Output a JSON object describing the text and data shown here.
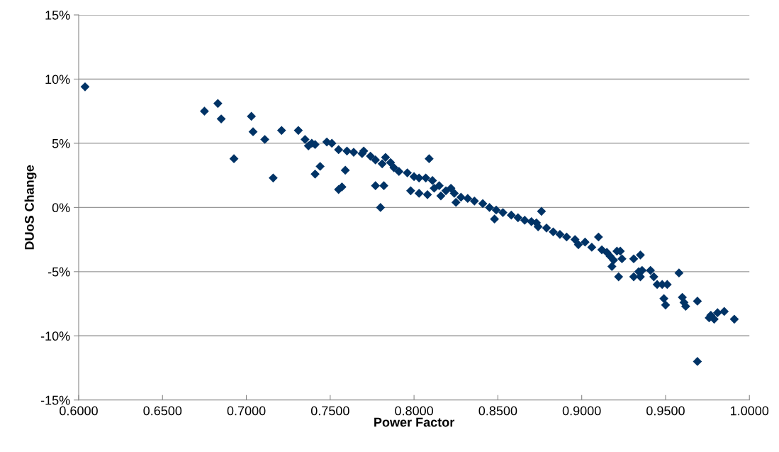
{
  "chart_data": {
    "type": "scatter",
    "xlabel": "Power Factor",
    "ylabel": "DUoS Change",
    "x": [
      0.6038,
      0.675,
      0.683,
      0.685,
      0.6926,
      0.703,
      0.704,
      0.711,
      0.716,
      0.721,
      0.731,
      0.735,
      0.737,
      0.739,
      0.741,
      0.741,
      0.744,
      0.748,
      0.751,
      0.755,
      0.755,
      0.757,
      0.759,
      0.76,
      0.764,
      0.769,
      0.77,
      0.774,
      0.777,
      0.777,
      0.78,
      0.782,
      0.781,
      0.783,
      0.786,
      0.788,
      0.791,
      0.796,
      0.8,
      0.798,
      0.803,
      0.803,
      0.807,
      0.809,
      0.808,
      0.811,
      0.812,
      0.815,
      0.816,
      0.819,
      0.822,
      0.825,
      0.824,
      0.828,
      0.832,
      0.836,
      0.841,
      0.845,
      0.848,
      0.849,
      0.853,
      0.858,
      0.862,
      0.866,
      0.87,
      0.873,
      0.876,
      0.874,
      0.879,
      0.883,
      0.887,
      0.891,
      0.896,
      0.898,
      0.902,
      0.906,
      0.91,
      0.912,
      0.915,
      0.917,
      0.919,
      0.921,
      0.918,
      0.923,
      0.924,
      0.922,
      0.931,
      0.935,
      0.931,
      0.934,
      0.935,
      0.936,
      0.941,
      0.943,
      0.945,
      0.948,
      0.949,
      0.95,
      0.951,
      0.958,
      0.96,
      0.961,
      0.962,
      0.969,
      0.977,
      0.979,
      0.981,
      0.985,
      0.991,
      0.969,
      0.976
    ],
    "values": [
      9.4,
      7.5,
      8.1,
      6.9,
      3.8,
      7.1,
      5.9,
      5.3,
      2.3,
      6.0,
      6.0,
      5.3,
      4.8,
      5.0,
      4.9,
      2.6,
      3.2,
      5.1,
      5.0,
      4.5,
      1.4,
      1.6,
      2.9,
      4.4,
      4.3,
      4.2,
      4.4,
      4.0,
      1.7,
      3.7,
      0.0,
      1.7,
      3.4,
      3.9,
      3.5,
      3.1,
      2.8,
      2.7,
      2.4,
      1.3,
      1.1,
      2.3,
      2.3,
      3.8,
      1.0,
      2.1,
      1.5,
      1.7,
      0.9,
      1.3,
      1.5,
      0.4,
      1.1,
      0.8,
      0.7,
      0.5,
      0.3,
      0.0,
      -0.9,
      -0.2,
      -0.4,
      -0.6,
      -0.8,
      -1.0,
      -1.1,
      -1.2,
      -0.3,
      -1.5,
      -1.6,
      -1.9,
      -2.1,
      -2.3,
      -2.5,
      -2.9,
      -2.7,
      -3.1,
      -2.3,
      -3.3,
      -3.5,
      -3.8,
      -4.1,
      -3.4,
      -4.6,
      -3.4,
      -4.0,
      -5.4,
      -4.0,
      -3.7,
      -5.4,
      -5.0,
      -5.4,
      -4.9,
      -4.9,
      -5.4,
      -6.0,
      -6.0,
      -7.1,
      -7.6,
      -6.0,
      -5.1,
      -7.0,
      -7.4,
      -7.7,
      -7.3,
      -8.4,
      -8.7,
      -8.2,
      -8.1,
      -8.7,
      -12.0,
      -8.6
    ],
    "color": "#003366",
    "marker": "diamond",
    "grid": "y",
    "xlim": [
      0.6,
      1.0
    ],
    "xticks": [
      {
        "value": 0.6,
        "label": "0.6000"
      },
      {
        "value": 0.65,
        "label": "0.6500"
      },
      {
        "value": 0.7,
        "label": "0.7000"
      },
      {
        "value": 0.75,
        "label": "0.7500"
      },
      {
        "value": 0.8,
        "label": "0.8000"
      },
      {
        "value": 0.85,
        "label": "0.8500"
      },
      {
        "value": 0.9,
        "label": "0.9000"
      },
      {
        "value": 0.95,
        "label": "0.9500"
      },
      {
        "value": 1.0,
        "label": "1.0000"
      }
    ],
    "ylim": [
      -15,
      15
    ],
    "yticks": [
      {
        "value": -15,
        "label": "-15%"
      },
      {
        "value": -10,
        "label": "-10%"
      },
      {
        "value": -5,
        "label": "-5%"
      },
      {
        "value": 0,
        "label": "0%"
      },
      {
        "value": 5,
        "label": "5%"
      },
      {
        "value": 10,
        "label": "10%"
      },
      {
        "value": 15,
        "label": "15%"
      }
    ]
  }
}
